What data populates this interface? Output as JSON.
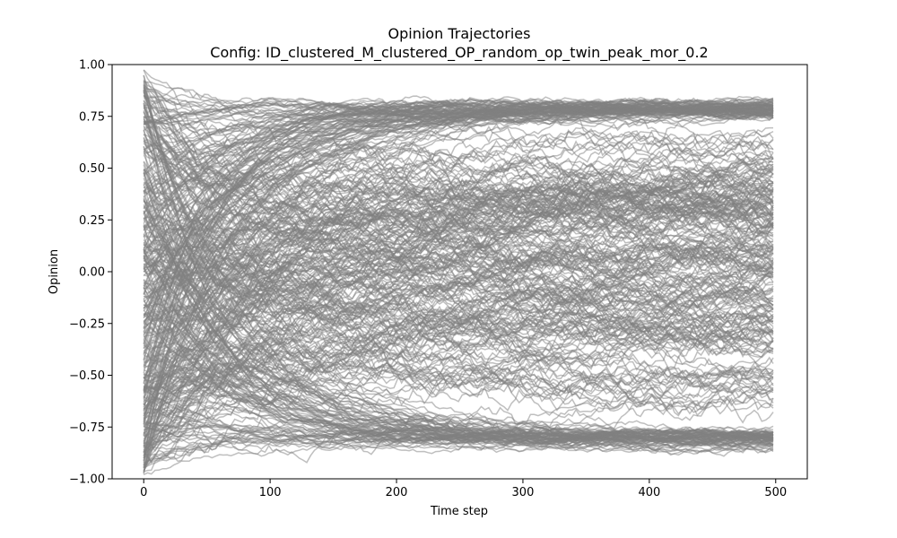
{
  "chart_data": {
    "type": "line",
    "title": "Opinion Trajectories",
    "subtitle": "Config: ID_clustered_M_clustered_OP_random_op_twin_peak_mor_0.2",
    "xlabel": "Time step",
    "ylabel": "Opinion",
    "xlim": [
      -25,
      525
    ],
    "ylim": [
      -1.0,
      1.0
    ],
    "x_ticks": [
      0,
      100,
      200,
      300,
      400,
      500
    ],
    "y_ticks": [
      -1.0,
      -0.75,
      -0.5,
      -0.25,
      0.0,
      0.25,
      0.5,
      0.75,
      1.0
    ],
    "x_tick_labels": [
      "0",
      "100",
      "200",
      "300",
      "400",
      "500"
    ],
    "y_tick_labels": [
      "−1.00",
      "−0.75",
      "−0.50",
      "−0.25",
      "0.00",
      "0.25",
      "0.50",
      "0.75",
      "1.00"
    ],
    "grid": false,
    "line_color": "#808080",
    "line_alpha": 0.5,
    "num_trajectories": 400,
    "time_steps": [
      0,
      500
    ],
    "attractors": [
      {
        "y": 0.79,
        "share": 0.22
      },
      {
        "y": -0.8,
        "share": 0.22
      },
      {
        "y": 0.33,
        "share": 0.14
      },
      {
        "y": -0.25,
        "share": 0.12
      },
      {
        "y": 0.1,
        "share": 0.1
      },
      {
        "y": 0.45,
        "share": 0.05
      },
      {
        "y": -0.05,
        "share": 0.05
      },
      {
        "y": -0.55,
        "share": 0.05
      },
      {
        "y": 0.65,
        "share": 0.05
      }
    ]
  }
}
